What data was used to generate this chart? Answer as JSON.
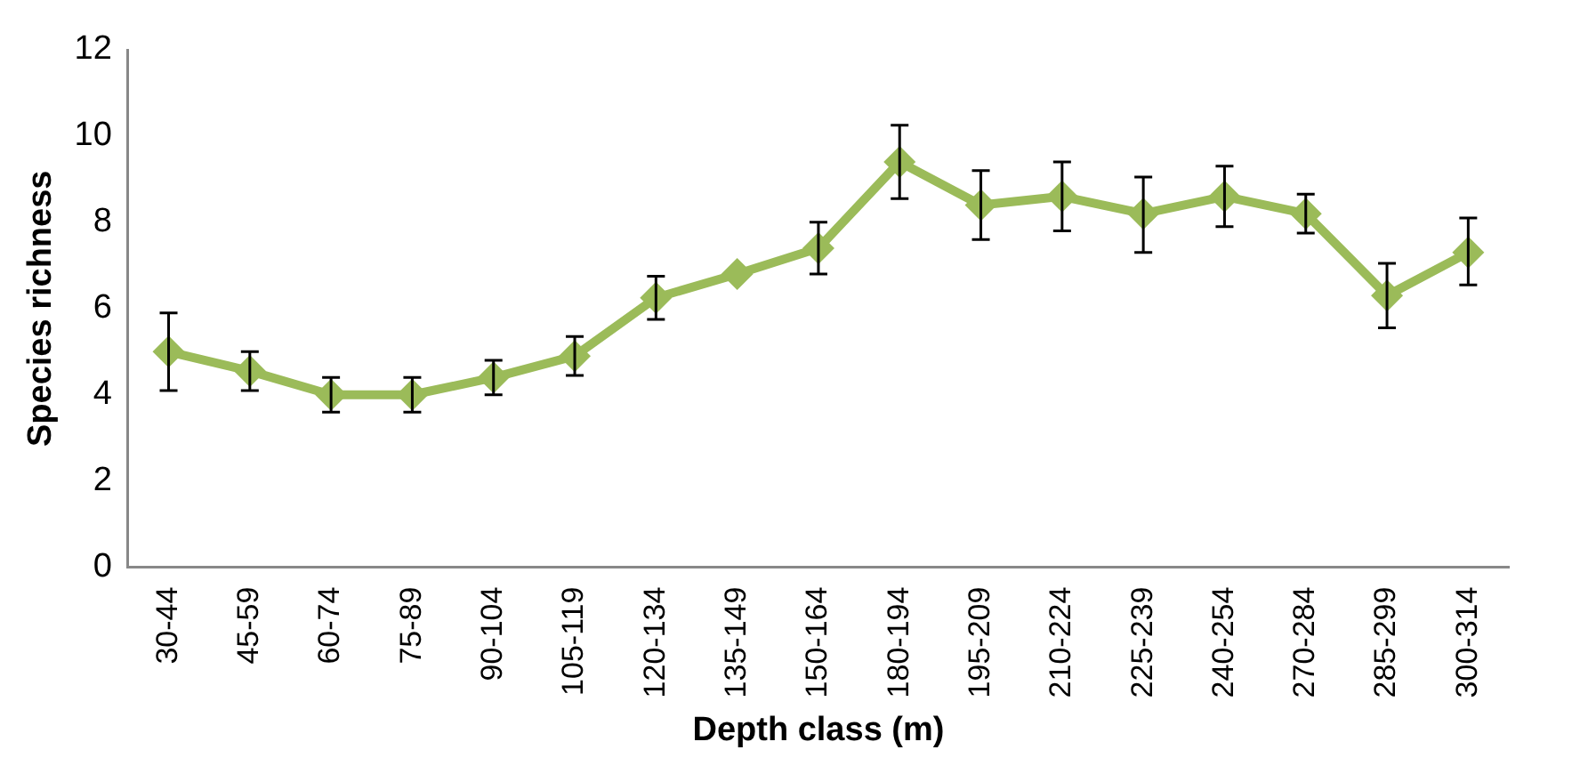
{
  "chart_data": {
    "type": "line",
    "xlabel": "Depth class (m)",
    "ylabel": "Species richness",
    "categories": [
      "30-44",
      "45-59",
      "60-74",
      "75-89",
      "90-104",
      "105-119",
      "120-134",
      "135-149",
      "150-164",
      "180-194",
      "195-209",
      "210-224",
      "225-239",
      "240-254",
      "270-284",
      "285-299",
      "300-314"
    ],
    "series": [
      {
        "color": "#9bbb59",
        "values": [
          5.0,
          4.55,
          4.0,
          4.0,
          4.4,
          4.9,
          6.25,
          6.8,
          7.4,
          9.4,
          8.4,
          8.6,
          8.2,
          8.6,
          8.2,
          6.3,
          7.3
        ],
        "errors": [
          0.9,
          0.45,
          0.4,
          0.4,
          0.4,
          0.45,
          0.5,
          null,
          0.6,
          0.85,
          0.8,
          0.8,
          [
            7.3,
            9.05
          ],
          0.7,
          0.45,
          0.75,
          [
            6.55,
            8.1
          ]
        ]
      }
    ],
    "ylim": [
      0,
      12
    ],
    "yticks": [
      0,
      2,
      4,
      6,
      8,
      10,
      12
    ],
    "grid": false,
    "legend": false,
    "marker": "diamond",
    "line_style": "solid"
  }
}
